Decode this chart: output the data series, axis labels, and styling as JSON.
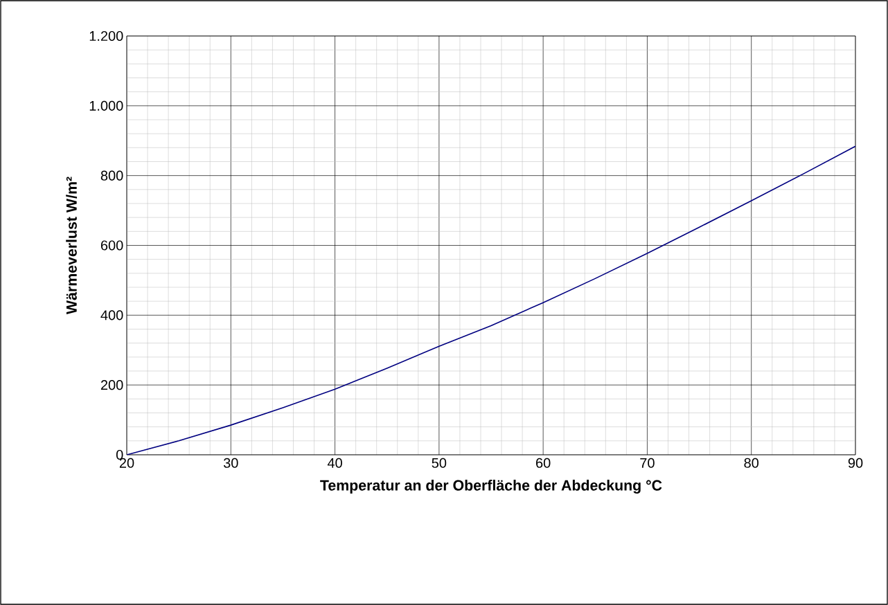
{
  "chart_data": {
    "type": "line",
    "xlabel": "Temperatur an der Oberfläche der Abdeckung °C",
    "ylabel": "Wärmeverlust W/m²",
    "x": [
      20,
      25,
      30,
      35,
      40,
      45,
      50,
      55,
      60,
      65,
      70,
      75,
      80,
      85,
      90
    ],
    "series": [
      {
        "color": "#000080",
        "values": [
          0,
          40,
          85,
          135,
          188,
          248,
          311,
          370,
          436,
          505,
          577,
          652,
          728,
          805,
          884
        ]
      }
    ],
    "xlim": [
      20,
      90
    ],
    "xticks": [
      20,
      30,
      40,
      50,
      60,
      70,
      80,
      90
    ],
    "ylim": [
      0,
      1200
    ],
    "yticks": [
      0,
      200,
      400,
      600,
      800,
      {
        "value": 1000,
        "label": "1.000"
      },
      {
        "value": 1200,
        "label": "1.200"
      }
    ],
    "grid": true,
    "marker": "none",
    "line_style": "solid"
  }
}
